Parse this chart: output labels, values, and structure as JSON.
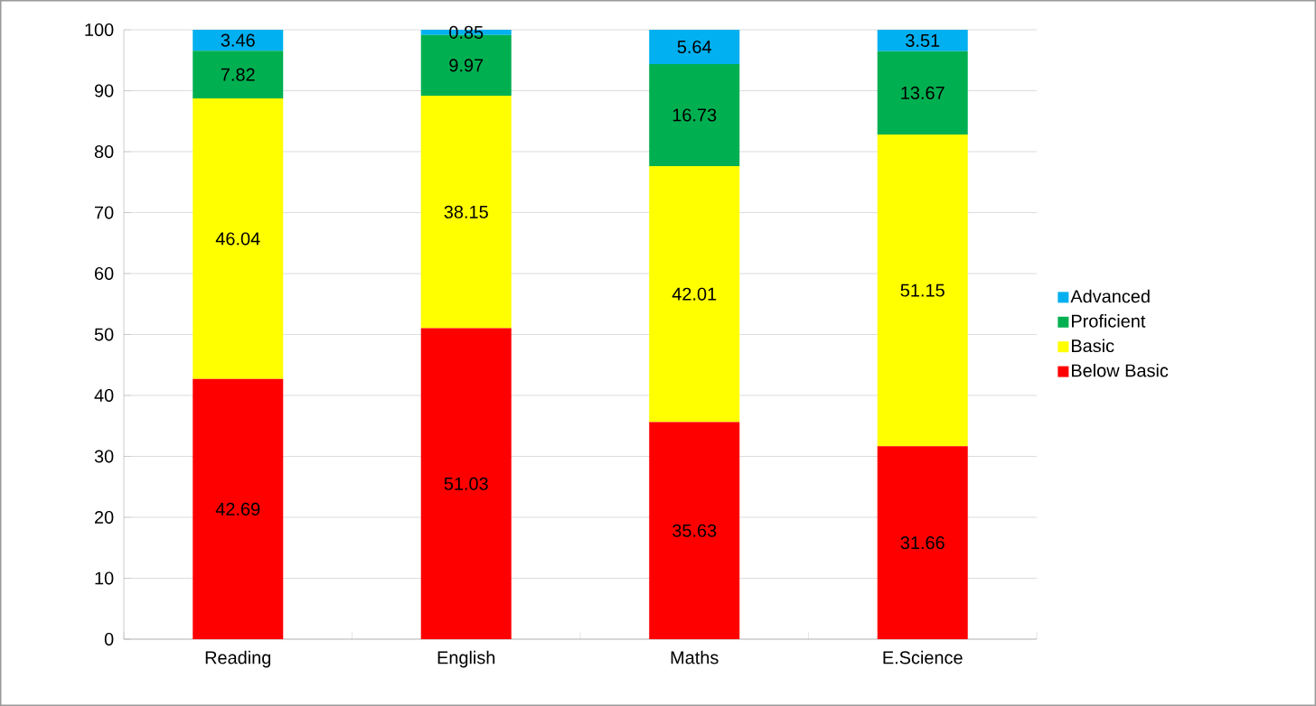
{
  "chart_data": {
    "type": "bar",
    "stacked": true,
    "categories": [
      "Reading",
      "English",
      "Maths",
      "E.Science"
    ],
    "series": [
      {
        "name": "Below Basic",
        "color": "#ff0000",
        "values": [
          42.69,
          51.03,
          35.63,
          31.66
        ]
      },
      {
        "name": "Basic",
        "color": "#ffff00",
        "values": [
          46.04,
          38.15,
          42.01,
          51.15
        ]
      },
      {
        "name": "Proficient",
        "color": "#00b050",
        "values": [
          7.82,
          9.97,
          16.73,
          13.67
        ]
      },
      {
        "name": "Advanced",
        "color": "#00b0f0",
        "values": [
          3.46,
          0.85,
          5.64,
          3.51
        ]
      }
    ],
    "ylim": [
      0,
      100
    ],
    "yticks": [
      0,
      10,
      20,
      30,
      40,
      50,
      60,
      70,
      80,
      90,
      100
    ],
    "grid": "y",
    "legend": "right",
    "data_labels": true
  }
}
